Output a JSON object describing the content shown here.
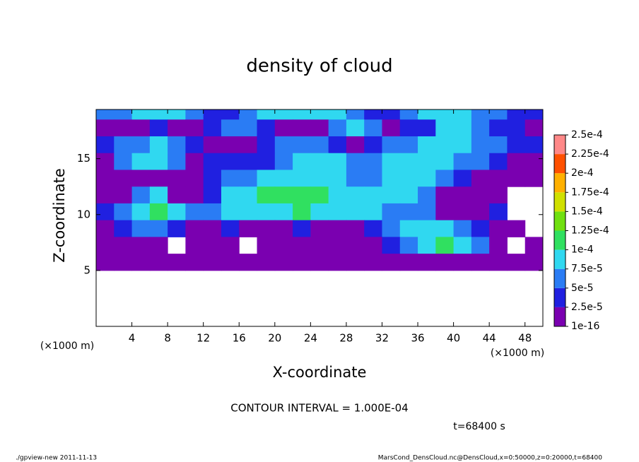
{
  "chart_data": {
    "type": "contour",
    "title": "density of cloud",
    "xlabel": "X-coordinate",
    "ylabel": "Z-coordinate",
    "x_unit": "(×1000 m)",
    "y_unit": "(×1000 m)",
    "xlim": [
      0,
      50
    ],
    "ylim": [
      0,
      19.4
    ],
    "xticks": [
      4,
      8,
      12,
      16,
      20,
      24,
      28,
      32,
      36,
      40,
      44,
      48
    ],
    "yticks": [
      5,
      10,
      15
    ],
    "x": [
      1,
      3,
      5,
      7,
      9,
      11,
      13,
      15,
      17,
      19,
      21,
      23,
      25,
      27,
      29,
      31,
      33,
      35,
      37,
      39,
      41,
      43,
      45,
      47,
      49
    ],
    "y": [
      19.0,
      17.75,
      16.25,
      14.75,
      13.25,
      11.75,
      10.25,
      8.75,
      7.25,
      5.75
    ],
    "z": [
      [
        6e-05,
        6e-05,
        8.5e-05,
        8.5e-05,
        8.5e-05,
        6e-05,
        3.5e-05,
        3.5e-05,
        6e-05,
        8.5e-05,
        8.5e-05,
        8.5e-05,
        8.5e-05,
        8.5e-05,
        6e-05,
        3.5e-05,
        3.5e-05,
        6e-05,
        8.5e-05,
        8.5e-05,
        8.5e-05,
        6e-05,
        6e-05,
        3.5e-05,
        3.5e-05
      ],
      [
        1.2e-05,
        1.2e-05,
        1.2e-05,
        3.5e-05,
        1.2e-05,
        1.2e-05,
        3.5e-05,
        6e-05,
        6e-05,
        3.5e-05,
        1.2e-05,
        1.2e-05,
        1.2e-05,
        6e-05,
        8.5e-05,
        6e-05,
        1.2e-05,
        3.5e-05,
        3.5e-05,
        8.5e-05,
        8.5e-05,
        6e-05,
        3.5e-05,
        3.5e-05,
        1.2e-05
      ],
      [
        3.5e-05,
        6e-05,
        6e-05,
        8.5e-05,
        6e-05,
        3.5e-05,
        1.2e-05,
        1.2e-05,
        1.2e-05,
        3.5e-05,
        6e-05,
        6e-05,
        6e-05,
        3.5e-05,
        1.2e-05,
        3.5e-05,
        6e-05,
        6e-05,
        8.5e-05,
        8.5e-05,
        8.5e-05,
        6e-05,
        6e-05,
        3.5e-05,
        3.5e-05
      ],
      [
        1.2e-05,
        6e-05,
        8.5e-05,
        8.5e-05,
        6e-05,
        1.2e-05,
        3.5e-05,
        3.5e-05,
        3.5e-05,
        3.5e-05,
        6e-05,
        8.5e-05,
        8.5e-05,
        8.5e-05,
        6e-05,
        6e-05,
        8.5e-05,
        8.5e-05,
        8.5e-05,
        8.5e-05,
        6e-05,
        6e-05,
        3.5e-05,
        1.2e-05,
        1.2e-05
      ],
      [
        1.2e-05,
        1.2e-05,
        1.2e-05,
        1.2e-05,
        1.2e-05,
        1.2e-05,
        3.5e-05,
        6e-05,
        6e-05,
        8.5e-05,
        8.5e-05,
        8.5e-05,
        8.5e-05,
        8.5e-05,
        6e-05,
        6e-05,
        8.5e-05,
        8.5e-05,
        8.5e-05,
        6e-05,
        3.5e-05,
        1.2e-05,
        1.2e-05,
        1.2e-05,
        1.2e-05
      ],
      [
        1.2e-05,
        1.2e-05,
        6e-05,
        8.5e-05,
        1.2e-05,
        1.2e-05,
        3.5e-05,
        8.5e-05,
        8.5e-05,
        0.00011,
        0.00011,
        0.00011,
        0.00011,
        8.5e-05,
        8.5e-05,
        8.5e-05,
        8.5e-05,
        8.5e-05,
        6e-05,
        1.2e-05,
        1.2e-05,
        1.2e-05,
        1.2e-05,
        null,
        null
      ],
      [
        3.5e-05,
        6e-05,
        8.5e-05,
        0.00011,
        8.5e-05,
        6e-05,
        6e-05,
        8.5e-05,
        8.5e-05,
        8.5e-05,
        8.5e-05,
        0.00011,
        8.5e-05,
        8.5e-05,
        8.5e-05,
        8.5e-05,
        6e-05,
        6e-05,
        6e-05,
        1.2e-05,
        1.2e-05,
        1.2e-05,
        3.5e-05,
        null,
        null
      ],
      [
        1.2e-05,
        3.5e-05,
        6e-05,
        6e-05,
        3.5e-05,
        1.2e-05,
        1.2e-05,
        3.5e-05,
        1.2e-05,
        1.2e-05,
        1.2e-05,
        3.5e-05,
        1.2e-05,
        1.2e-05,
        1.2e-05,
        3.5e-05,
        6e-05,
        8.5e-05,
        8.5e-05,
        8.5e-05,
        6e-05,
        3.5e-05,
        1.2e-05,
        1.2e-05,
        null
      ],
      [
        1.2e-05,
        1.2e-05,
        1.2e-05,
        1.2e-05,
        null,
        1.2e-05,
        1.2e-05,
        1.2e-05,
        null,
        1.2e-05,
        1.2e-05,
        1.2e-05,
        1.2e-05,
        1.2e-05,
        1.2e-05,
        1.2e-05,
        3.5e-05,
        6e-05,
        8.5e-05,
        0.00011,
        8.5e-05,
        6e-05,
        1.2e-05,
        null,
        1.2e-05
      ],
      [
        1.2e-05,
        1.2e-05,
        1.2e-05,
        1.2e-05,
        1.2e-05,
        1.2e-05,
        1.2e-05,
        1.2e-05,
        1.2e-05,
        1.2e-05,
        1.2e-05,
        1.2e-05,
        1.2e-05,
        1.2e-05,
        1.2e-05,
        1.2e-05,
        1.2e-05,
        1.2e-05,
        1.2e-05,
        1.2e-05,
        1.2e-05,
        1.2e-05,
        1.2e-05,
        1.2e-05,
        1.2e-05
      ]
    ],
    "colorbar": {
      "levels": [
        {
          "value": 1e-16,
          "label": "1e-16"
        },
        {
          "value": 2.5e-05,
          "label": "2.5e-5"
        },
        {
          "value": 5e-05,
          "label": "5e-5"
        },
        {
          "value": 7.5e-05,
          "label": "7.5e-5"
        },
        {
          "value": 0.0001,
          "label": "1e-4"
        },
        {
          "value": 0.000125,
          "label": "1.25e-4"
        },
        {
          "value": 0.00015,
          "label": "1.5e-4"
        },
        {
          "value": 0.000175,
          "label": "1.75e-4"
        },
        {
          "value": 0.0002,
          "label": "2e-4"
        },
        {
          "value": 0.000225,
          "label": "2.25e-4"
        },
        {
          "value": 0.00025,
          "label": "2.5e-4"
        }
      ],
      "colors": [
        "#7a00b0",
        "#2020e0",
        "#2a7cf4",
        "#30d8f0",
        "#30e060",
        "#70e010",
        "#d0e000",
        "#ffb000",
        "#ff5000",
        "#ff8888"
      ]
    },
    "contour_interval_label": "CONTOUR INTERVAL = 1.000E-04",
    "time_label": "t=68400 s",
    "footer_left": "./gpview-new  2011-11-13",
    "footer_right": "MarsCond_DensCloud.nc@DensCloud,x=0:50000,z=0:20000,t=68400"
  }
}
